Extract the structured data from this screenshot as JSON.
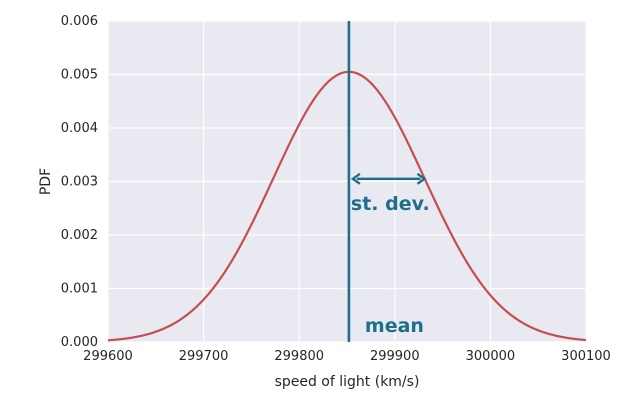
{
  "chart_data": {
    "type": "line",
    "title": "",
    "xlabel": "speed of light (km/s)",
    "ylabel": "PDF",
    "xlim": [
      299600,
      300100
    ],
    "ylim": [
      0,
      0.006
    ],
    "x_ticks": [
      299600,
      299700,
      299800,
      299900,
      300000,
      300100
    ],
    "x_tick_labels": [
      "299600",
      "299700",
      "299800",
      "299900",
      "300000",
      "300100"
    ],
    "y_ticks": [
      0,
      0.001,
      0.002,
      0.003,
      0.004,
      0.005,
      0.006
    ],
    "y_tick_labels": [
      "0.000",
      "0.001",
      "0.002",
      "0.003",
      "0.004",
      "0.005",
      "0.006"
    ],
    "grid": true,
    "series": [
      {
        "kind": "normal-pdf",
        "mean": 299852,
        "std": 79,
        "color": "#c44e52"
      }
    ],
    "annotations": [
      {
        "kind": "vline",
        "label": "mean",
        "x": 299852,
        "color": "#1f6f8b"
      },
      {
        "kind": "double-arrow",
        "label": "st. dev.",
        "x_start": 299852,
        "x_end": 299931,
        "y": 0.00305,
        "color": "#1f6f8b"
      }
    ],
    "background_color": "#e9e9f1",
    "grid_color": "#ffffff"
  }
}
